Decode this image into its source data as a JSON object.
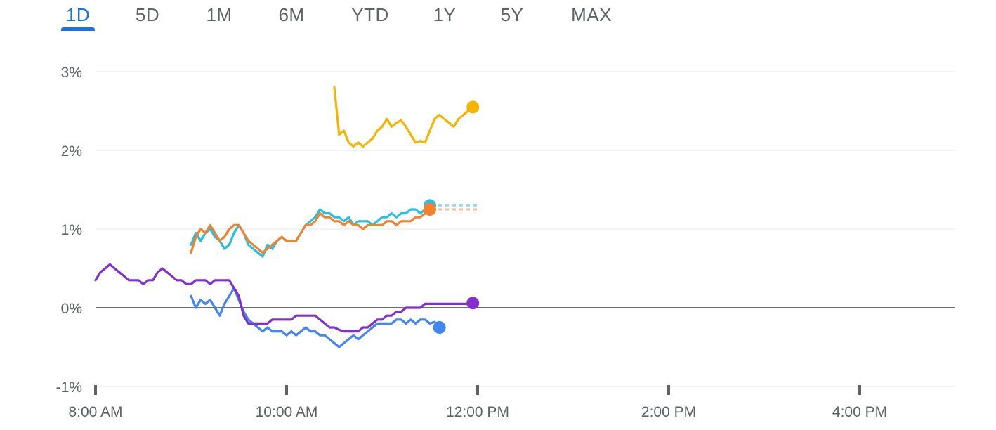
{
  "tabs": [
    {
      "label": "1D",
      "active": true
    },
    {
      "label": "5D",
      "active": false
    },
    {
      "label": "1M",
      "active": false
    },
    {
      "label": "6M",
      "active": false
    },
    {
      "label": "YTD",
      "active": false
    },
    {
      "label": "1Y",
      "active": false
    },
    {
      "label": "5Y",
      "active": false
    },
    {
      "label": "MAX",
      "active": false
    }
  ],
  "colors": {
    "active_tab": "#1a73e8",
    "tab_text": "#5f6368",
    "grid": "#e8eaed",
    "baseline": "#3c4043",
    "axis_text": "#5f6368"
  },
  "chart_data": {
    "type": "line",
    "x_axis": {
      "min": 8,
      "max": 17,
      "ticks": [
        {
          "value": 8,
          "label": "8:00 AM"
        },
        {
          "value": 10,
          "label": "10:00 AM"
        },
        {
          "value": 12,
          "label": "12:00 PM"
        },
        {
          "value": 14,
          "label": "2:00 PM"
        },
        {
          "value": 16,
          "label": "4:00 PM"
        }
      ]
    },
    "y_axis": {
      "min": -1,
      "max": 3,
      "unit": "%",
      "ticks": [
        {
          "value": 3,
          "label": "3%"
        },
        {
          "value": 2,
          "label": "2%"
        },
        {
          "value": 1,
          "label": "1%"
        },
        {
          "value": 0,
          "label": "0%"
        },
        {
          "value": -1,
          "label": "-1%"
        }
      ]
    },
    "grid": true,
    "baseline": 0,
    "series": [
      {
        "color": "#f4b400",
        "end_marker": true,
        "dotted_extension": false,
        "points": [
          [
            10.5,
            2.8
          ],
          [
            10.55,
            2.2
          ],
          [
            10.6,
            2.25
          ],
          [
            10.65,
            2.1
          ],
          [
            10.7,
            2.05
          ],
          [
            10.75,
            2.1
          ],
          [
            10.8,
            2.05
          ],
          [
            10.85,
            2.1
          ],
          [
            10.9,
            2.15
          ],
          [
            10.95,
            2.25
          ],
          [
            11.0,
            2.3
          ],
          [
            11.05,
            2.4
          ],
          [
            11.1,
            2.3
          ],
          [
            11.15,
            2.35
          ],
          [
            11.2,
            2.38
          ],
          [
            11.25,
            2.3
          ],
          [
            11.3,
            2.2
          ],
          [
            11.35,
            2.1
          ],
          [
            11.4,
            2.12
          ],
          [
            11.45,
            2.1
          ],
          [
            11.5,
            2.25
          ],
          [
            11.55,
            2.4
          ],
          [
            11.6,
            2.45
          ],
          [
            11.65,
            2.4
          ],
          [
            11.7,
            2.35
          ],
          [
            11.75,
            2.3
          ],
          [
            11.8,
            2.4
          ],
          [
            11.85,
            2.45
          ],
          [
            11.9,
            2.5
          ],
          [
            11.95,
            2.55
          ]
        ]
      },
      {
        "color": "#24c1e0",
        "end_marker": true,
        "dotted_extension": true,
        "points": [
          [
            9.0,
            0.8
          ],
          [
            9.05,
            0.95
          ],
          [
            9.1,
            0.85
          ],
          [
            9.15,
            0.95
          ],
          [
            9.2,
            1.0
          ],
          [
            9.25,
            0.9
          ],
          [
            9.3,
            0.85
          ],
          [
            9.35,
            0.75
          ],
          [
            9.4,
            0.8
          ],
          [
            9.45,
            0.95
          ],
          [
            9.5,
            1.05
          ],
          [
            9.55,
            0.95
          ],
          [
            9.6,
            0.8
          ],
          [
            9.65,
            0.75
          ],
          [
            9.7,
            0.7
          ],
          [
            9.75,
            0.65
          ],
          [
            9.8,
            0.8
          ],
          [
            9.85,
            0.75
          ],
          [
            9.9,
            0.85
          ],
          [
            9.95,
            0.9
          ],
          [
            10.0,
            0.85
          ],
          [
            10.05,
            0.85
          ],
          [
            10.1,
            0.85
          ],
          [
            10.15,
            0.95
          ],
          [
            10.2,
            1.05
          ],
          [
            10.25,
            1.1
          ],
          [
            10.3,
            1.15
          ],
          [
            10.35,
            1.25
          ],
          [
            10.4,
            1.2
          ],
          [
            10.45,
            1.2
          ],
          [
            10.5,
            1.15
          ],
          [
            10.55,
            1.15
          ],
          [
            10.6,
            1.1
          ],
          [
            10.65,
            1.15
          ],
          [
            10.7,
            1.05
          ],
          [
            10.75,
            1.1
          ],
          [
            10.8,
            1.1
          ],
          [
            10.85,
            1.1
          ],
          [
            10.9,
            1.05
          ],
          [
            10.95,
            1.1
          ],
          [
            11.0,
            1.15
          ],
          [
            11.05,
            1.15
          ],
          [
            11.1,
            1.2
          ],
          [
            11.15,
            1.15
          ],
          [
            11.2,
            1.2
          ],
          [
            11.25,
            1.2
          ],
          [
            11.3,
            1.25
          ],
          [
            11.35,
            1.25
          ],
          [
            11.4,
            1.2
          ],
          [
            11.45,
            1.25
          ],
          [
            11.5,
            1.3
          ]
        ]
      },
      {
        "color": "#f4812b",
        "end_marker": true,
        "dotted_extension": true,
        "points": [
          [
            9.0,
            0.7
          ],
          [
            9.05,
            0.9
          ],
          [
            9.1,
            1.0
          ],
          [
            9.15,
            0.95
          ],
          [
            9.2,
            1.05
          ],
          [
            9.25,
            0.95
          ],
          [
            9.3,
            0.85
          ],
          [
            9.35,
            0.9
          ],
          [
            9.4,
            1.0
          ],
          [
            9.45,
            1.05
          ],
          [
            9.5,
            1.05
          ],
          [
            9.55,
            0.95
          ],
          [
            9.6,
            0.85
          ],
          [
            9.65,
            0.8
          ],
          [
            9.7,
            0.75
          ],
          [
            9.75,
            0.7
          ],
          [
            9.8,
            0.75
          ],
          [
            9.85,
            0.8
          ],
          [
            9.9,
            0.85
          ],
          [
            9.95,
            0.9
          ],
          [
            10.0,
            0.85
          ],
          [
            10.05,
            0.85
          ],
          [
            10.1,
            0.85
          ],
          [
            10.15,
            0.95
          ],
          [
            10.2,
            1.05
          ],
          [
            10.25,
            1.05
          ],
          [
            10.3,
            1.1
          ],
          [
            10.35,
            1.2
          ],
          [
            10.4,
            1.15
          ],
          [
            10.45,
            1.15
          ],
          [
            10.5,
            1.1
          ],
          [
            10.55,
            1.1
          ],
          [
            10.6,
            1.05
          ],
          [
            10.65,
            1.1
          ],
          [
            10.7,
            1.05
          ],
          [
            10.75,
            1.05
          ],
          [
            10.8,
            1.0
          ],
          [
            10.85,
            1.05
          ],
          [
            10.9,
            1.05
          ],
          [
            10.95,
            1.05
          ],
          [
            11.0,
            1.05
          ],
          [
            11.05,
            1.1
          ],
          [
            11.1,
            1.1
          ],
          [
            11.15,
            1.05
          ],
          [
            11.2,
            1.1
          ],
          [
            11.25,
            1.1
          ],
          [
            11.3,
            1.1
          ],
          [
            11.35,
            1.15
          ],
          [
            11.4,
            1.15
          ],
          [
            11.45,
            1.2
          ],
          [
            11.5,
            1.25
          ]
        ]
      },
      {
        "color": "#4285f4",
        "end_marker": true,
        "dotted_extension": false,
        "points": [
          [
            9.0,
            0.15
          ],
          [
            9.05,
            0.0
          ],
          [
            9.1,
            0.1
          ],
          [
            9.15,
            0.05
          ],
          [
            9.2,
            0.1
          ],
          [
            9.25,
            0.0
          ],
          [
            9.3,
            -0.1
          ],
          [
            9.35,
            0.05
          ],
          [
            9.4,
            0.15
          ],
          [
            9.45,
            0.25
          ],
          [
            9.5,
            0.1
          ],
          [
            9.55,
            -0.05
          ],
          [
            9.6,
            -0.15
          ],
          [
            9.65,
            -0.2
          ],
          [
            9.7,
            -0.25
          ],
          [
            9.75,
            -0.3
          ],
          [
            9.8,
            -0.25
          ],
          [
            9.85,
            -0.3
          ],
          [
            9.9,
            -0.3
          ],
          [
            9.95,
            -0.3
          ],
          [
            10.0,
            -0.35
          ],
          [
            10.05,
            -0.3
          ],
          [
            10.1,
            -0.35
          ],
          [
            10.15,
            -0.3
          ],
          [
            10.2,
            -0.25
          ],
          [
            10.25,
            -0.3
          ],
          [
            10.3,
            -0.3
          ],
          [
            10.35,
            -0.35
          ],
          [
            10.4,
            -0.35
          ],
          [
            10.45,
            -0.4
          ],
          [
            10.5,
            -0.45
          ],
          [
            10.55,
            -0.5
          ],
          [
            10.6,
            -0.45
          ],
          [
            10.65,
            -0.4
          ],
          [
            10.7,
            -0.35
          ],
          [
            10.75,
            -0.4
          ],
          [
            10.8,
            -0.35
          ],
          [
            10.85,
            -0.3
          ],
          [
            10.9,
            -0.25
          ],
          [
            10.95,
            -0.2
          ],
          [
            11.0,
            -0.2
          ],
          [
            11.05,
            -0.2
          ],
          [
            11.1,
            -0.2
          ],
          [
            11.15,
            -0.15
          ],
          [
            11.2,
            -0.15
          ],
          [
            11.25,
            -0.2
          ],
          [
            11.3,
            -0.15
          ],
          [
            11.35,
            -0.2
          ],
          [
            11.4,
            -0.15
          ],
          [
            11.45,
            -0.15
          ],
          [
            11.5,
            -0.2
          ],
          [
            11.55,
            -0.18
          ],
          [
            11.6,
            -0.25
          ]
        ]
      },
      {
        "color": "#8430ce",
        "end_marker": true,
        "dotted_extension": false,
        "points": [
          [
            8.0,
            0.35
          ],
          [
            8.05,
            0.45
          ],
          [
            8.1,
            0.5
          ],
          [
            8.15,
            0.55
          ],
          [
            8.2,
            0.5
          ],
          [
            8.25,
            0.45
          ],
          [
            8.3,
            0.4
          ],
          [
            8.35,
            0.35
          ],
          [
            8.4,
            0.35
          ],
          [
            8.45,
            0.35
          ],
          [
            8.5,
            0.3
          ],
          [
            8.55,
            0.35
          ],
          [
            8.6,
            0.35
          ],
          [
            8.65,
            0.45
          ],
          [
            8.7,
            0.5
          ],
          [
            8.75,
            0.45
          ],
          [
            8.8,
            0.4
          ],
          [
            8.85,
            0.35
          ],
          [
            8.9,
            0.35
          ],
          [
            8.95,
            0.3
          ],
          [
            9.0,
            0.3
          ],
          [
            9.05,
            0.35
          ],
          [
            9.1,
            0.35
          ],
          [
            9.15,
            0.35
          ],
          [
            9.2,
            0.3
          ],
          [
            9.25,
            0.35
          ],
          [
            9.3,
            0.35
          ],
          [
            9.35,
            0.35
          ],
          [
            9.4,
            0.35
          ],
          [
            9.45,
            0.25
          ],
          [
            9.5,
            0.15
          ],
          [
            9.55,
            -0.1
          ],
          [
            9.6,
            -0.2
          ],
          [
            9.65,
            -0.2
          ],
          [
            9.7,
            -0.2
          ],
          [
            9.75,
            -0.2
          ],
          [
            9.8,
            -0.2
          ],
          [
            9.85,
            -0.15
          ],
          [
            9.9,
            -0.15
          ],
          [
            9.95,
            -0.15
          ],
          [
            10.0,
            -0.15
          ],
          [
            10.05,
            -0.15
          ],
          [
            10.1,
            -0.1
          ],
          [
            10.15,
            -0.1
          ],
          [
            10.2,
            -0.1
          ],
          [
            10.25,
            -0.1
          ],
          [
            10.3,
            -0.1
          ],
          [
            10.35,
            -0.15
          ],
          [
            10.4,
            -0.2
          ],
          [
            10.45,
            -0.25
          ],
          [
            10.5,
            -0.25
          ],
          [
            10.55,
            -0.28
          ],
          [
            10.6,
            -0.3
          ],
          [
            10.65,
            -0.3
          ],
          [
            10.7,
            -0.3
          ],
          [
            10.75,
            -0.3
          ],
          [
            10.8,
            -0.25
          ],
          [
            10.85,
            -0.25
          ],
          [
            10.9,
            -0.2
          ],
          [
            10.95,
            -0.15
          ],
          [
            11.0,
            -0.15
          ],
          [
            11.05,
            -0.1
          ],
          [
            11.1,
            -0.1
          ],
          [
            11.15,
            -0.05
          ],
          [
            11.2,
            -0.05
          ],
          [
            11.25,
            0.0
          ],
          [
            11.3,
            0.0
          ],
          [
            11.35,
            0.0
          ],
          [
            11.4,
            0.0
          ],
          [
            11.45,
            0.05
          ],
          [
            11.5,
            0.05
          ],
          [
            11.55,
            0.05
          ],
          [
            11.6,
            0.05
          ],
          [
            11.65,
            0.05
          ],
          [
            11.7,
            0.05
          ],
          [
            11.75,
            0.05
          ],
          [
            11.8,
            0.05
          ],
          [
            11.85,
            0.05
          ],
          [
            11.9,
            0.05
          ],
          [
            11.95,
            0.06
          ]
        ]
      }
    ]
  }
}
